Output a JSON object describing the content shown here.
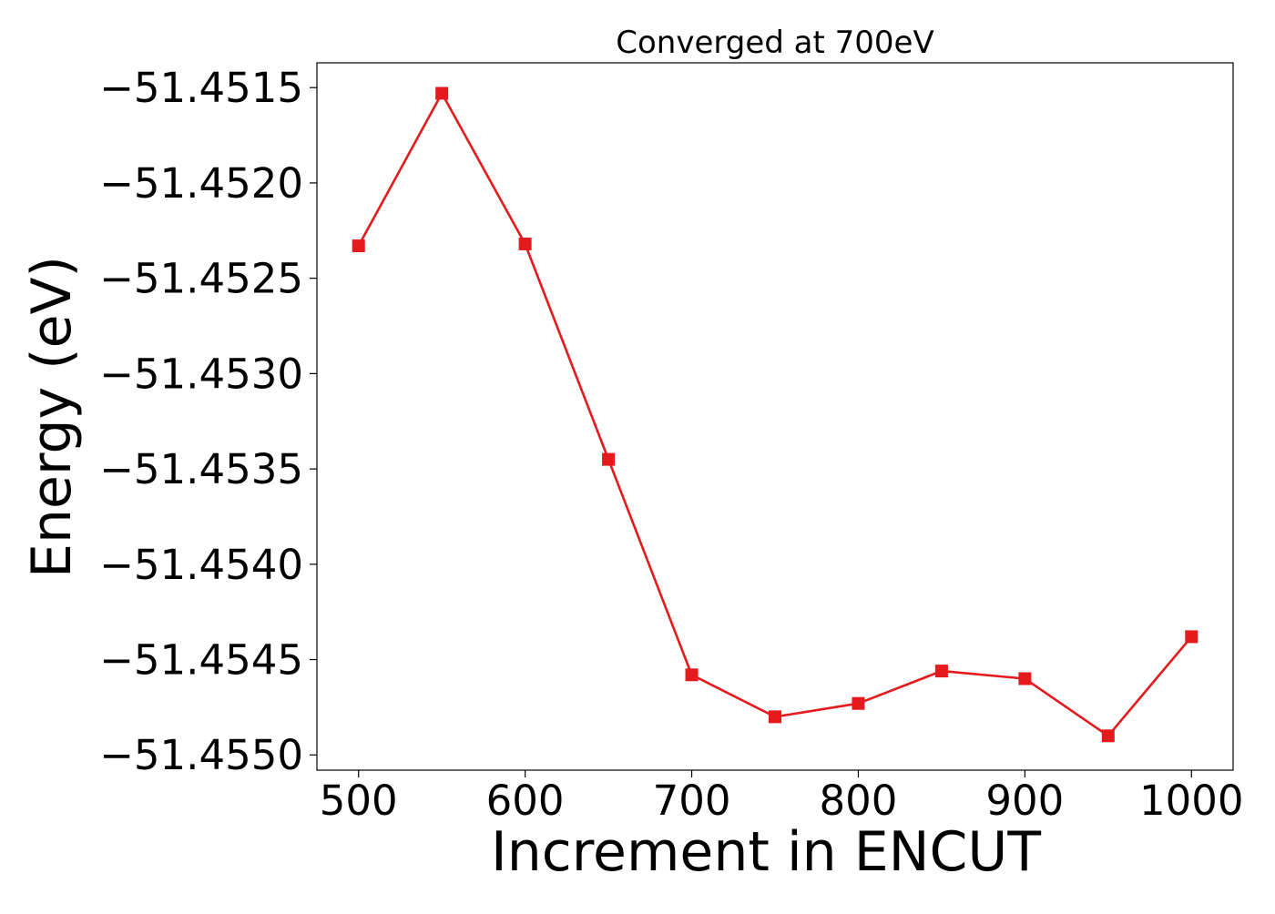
{
  "chart_data": {
    "type": "line",
    "title": "Converged at 700eV",
    "xlabel": "Increment in ENCUT",
    "ylabel": "Energy (eV)",
    "x": [
      500,
      550,
      600,
      650,
      700,
      750,
      800,
      850,
      900,
      950,
      1000
    ],
    "series": [
      {
        "values": [
          -51.45233,
          -51.45153,
          -51.45232,
          -51.45345,
          -51.45458,
          -51.4548,
          -51.45473,
          -51.45456,
          -51.4546,
          -51.4549,
          -51.45438
        ],
        "color": "#e41a1c",
        "marker": "square"
      }
    ],
    "xlim": [
      475,
      1025
    ],
    "ylim": [
      -51.45508,
      -51.45137
    ],
    "xticks": [
      500,
      600,
      700,
      800,
      900,
      1000
    ],
    "xtick_labels": [
      "500",
      "600",
      "700",
      "800",
      "900",
      "1000"
    ],
    "yticks": [
      -51.4515,
      -51.452,
      -51.4525,
      -51.453,
      -51.4535,
      -51.454,
      -51.4545,
      -51.455
    ],
    "ytick_labels": [
      "−51.4515",
      "−51.4520",
      "−51.4525",
      "−51.4530",
      "−51.4535",
      "−51.4540",
      "−51.4545",
      "−51.4550"
    ],
    "grid": false,
    "legend": "none"
  }
}
